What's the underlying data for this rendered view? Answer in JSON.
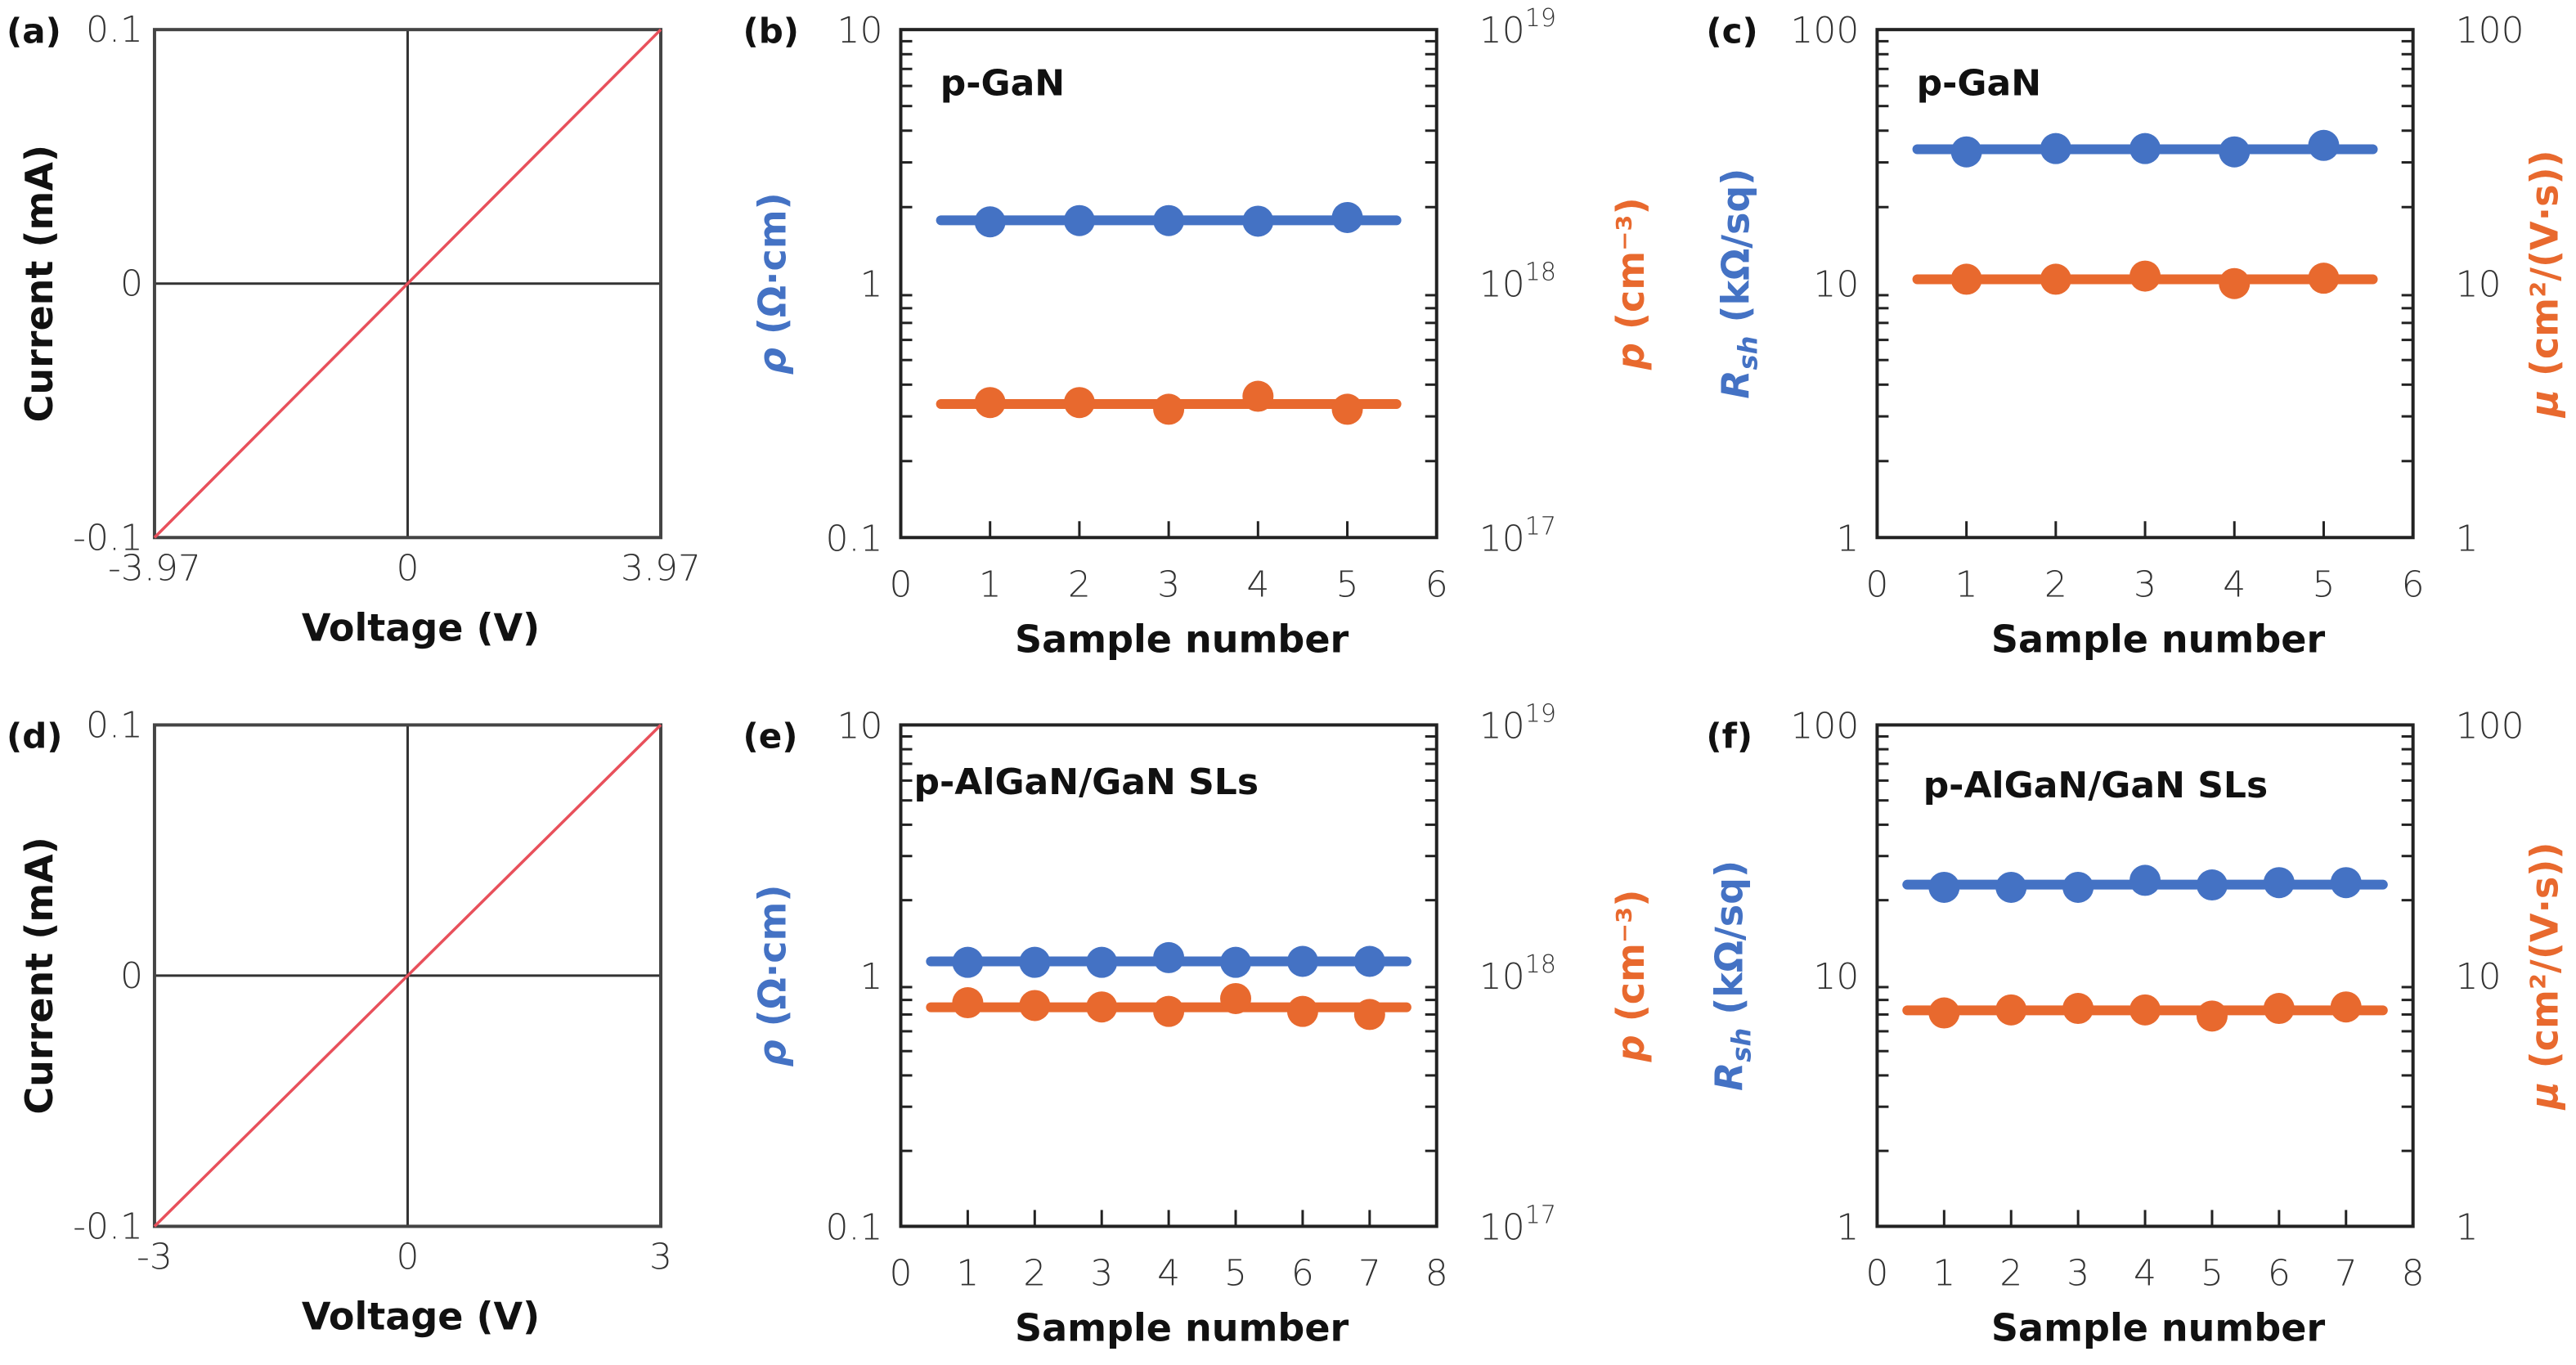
{
  "colors": {
    "blue": "#4472C4",
    "orange": "#E8692E",
    "iv_line": "#E8505B",
    "axis": "#333333"
  },
  "chart_data": [
    {
      "panel": "(a)",
      "type": "line",
      "xlabel": "Voltage (V)",
      "ylabel": "Current (mA)",
      "xlim": [
        -3.97,
        3.97
      ],
      "ylim": [
        -0.1,
        0.1
      ],
      "xticks": [
        "-3.97",
        "0",
        "3.97"
      ],
      "xtick_values": [
        -3.97,
        0,
        3.97
      ],
      "yticks": [
        "0.1",
        "0",
        "-0.1"
      ],
      "ytick_values": [
        0.1,
        0,
        -0.1
      ],
      "grid": "zero-lines",
      "series": [
        {
          "x": [
            -3.97,
            0,
            3.97
          ],
          "y": [
            -0.1,
            0,
            0.1
          ],
          "color": "#E8505B"
        }
      ]
    },
    {
      "panel": "(b)",
      "type": "scatter",
      "title": "p-GaN",
      "xlabel": "Sample number",
      "xlim": [
        0,
        6
      ],
      "xticks": [
        "0",
        "1",
        "2",
        "3",
        "4",
        "5",
        "6"
      ],
      "ylabel_left": {
        "main": "ρ",
        "sub": "",
        "rest": " (Ω·cm)"
      },
      "ylim_left": [
        0.1,
        10
      ],
      "yscale": "log",
      "yticks_left": [
        "10",
        "1",
        "0.1"
      ],
      "ylabel_right": {
        "main": "p",
        "sub": "",
        "rest": " (cm⁻³)"
      },
      "ylim_right": [
        1e+17,
        1e+19
      ],
      "yticks_right": [
        {
          "base": "10",
          "exp": "19"
        },
        {
          "base": "10",
          "exp": "18"
        },
        {
          "base": "10",
          "exp": "17"
        }
      ],
      "series": [
        {
          "axis": "left",
          "color": "#4472C4",
          "x": [
            1,
            2,
            3,
            4,
            5
          ],
          "y": [
            1.75,
            1.77,
            1.77,
            1.76,
            1.82
          ]
        },
        {
          "axis": "right",
          "color": "#E8692E",
          "x": [
            1,
            2,
            3,
            4,
            5
          ],
          "y": [
            3.4e+17,
            3.4e+17,
            3.2e+17,
            3.6e+17,
            3.2e+17
          ]
        }
      ]
    },
    {
      "panel": "(c)",
      "type": "scatter",
      "title": "p-GaN",
      "xlabel": "Sample number",
      "xlim": [
        0,
        6
      ],
      "xticks": [
        "0",
        "1",
        "2",
        "3",
        "4",
        "5",
        "6"
      ],
      "ylabel_left": {
        "main": "R",
        "sub": "sh",
        "rest": " (kΩ/sq)"
      },
      "ylim_left": [
        1,
        100
      ],
      "yscale": "log",
      "yticks_left": [
        "100",
        "10",
        "1"
      ],
      "ylabel_right": {
        "main": "μ",
        "sub": "",
        "rest": " (cm²/(V·s))"
      },
      "ylim_right": [
        1,
        100
      ],
      "yticks_right": [
        {
          "base": "100",
          "exp": ""
        },
        {
          "base": "10",
          "exp": ""
        },
        {
          "base": "1",
          "exp": ""
        }
      ],
      "series": [
        {
          "axis": "left",
          "color": "#4472C4",
          "x": [
            1,
            2,
            3,
            4,
            5
          ],
          "y": [
            33,
            34,
            34,
            33,
            35
          ]
        },
        {
          "axis": "right",
          "color": "#E8692E",
          "x": [
            1,
            2,
            3,
            4,
            5
          ],
          "y": [
            10.4,
            10.4,
            10.7,
            10.0,
            10.5
          ]
        }
      ]
    },
    {
      "panel": "(d)",
      "type": "line",
      "xlabel": "Voltage (V)",
      "ylabel": "Current (mA)",
      "xlim": [
        -3,
        3
      ],
      "ylim": [
        -0.1,
        0.1
      ],
      "xticks": [
        "-3",
        "0",
        "3"
      ],
      "xtick_values": [
        -3,
        0,
        3
      ],
      "yticks": [
        "0.1",
        "0",
        "-0.1"
      ],
      "ytick_values": [
        0.1,
        0,
        -0.1
      ],
      "grid": "zero-lines",
      "series": [
        {
          "x": [
            -3,
            0,
            3
          ],
          "y": [
            -0.1,
            0,
            0.1
          ],
          "color": "#E8505B"
        }
      ]
    },
    {
      "panel": "(e)",
      "type": "scatter",
      "title": "p-AlGaN/GaN SLs",
      "xlabel": "Sample number",
      "xlim": [
        0,
        8
      ],
      "xticks": [
        "0",
        "1",
        "2",
        "3",
        "4",
        "5",
        "6",
        "7",
        "8"
      ],
      "ylabel_left": {
        "main": "ρ",
        "sub": "",
        "rest": " (Ω·cm)"
      },
      "ylim_left": [
        0.1,
        10
      ],
      "yscale": "log",
      "yticks_left": [
        "10",
        "1",
        "0.1"
      ],
      "ylabel_right": {
        "main": "p",
        "sub": "",
        "rest": " (cm⁻³)"
      },
      "ylim_right": [
        1e+17,
        1e+19
      ],
      "yticks_right": [
        {
          "base": "10",
          "exp": "19"
        },
        {
          "base": "10",
          "exp": "18"
        },
        {
          "base": "10",
          "exp": "17"
        }
      ],
      "series": [
        {
          "axis": "left",
          "color": "#4472C4",
          "x": [
            1,
            2,
            3,
            4,
            5,
            6,
            7
          ],
          "y": [
            1.13,
            1.13,
            1.13,
            1.18,
            1.13,
            1.14,
            1.14
          ]
        },
        {
          "axis": "right",
          "color": "#E8692E",
          "x": [
            1,
            2,
            3,
            4,
            5,
            6,
            7
          ],
          "y": [
            7.8e+17,
            7.6e+17,
            7.5e+17,
            7.2e+17,
            8.1e+17,
            7.2e+17,
            7e+17
          ]
        }
      ]
    },
    {
      "panel": "(f)",
      "type": "scatter",
      "title": "p-AlGaN/GaN SLs",
      "xlabel": "Sample number",
      "xlim": [
        0,
        8
      ],
      "xticks": [
        "0",
        "1",
        "2",
        "3",
        "4",
        "5",
        "6",
        "7",
        "8"
      ],
      "ylabel_left": {
        "main": "R",
        "sub": "sh",
        "rest": " (kΩ/sq)"
      },
      "ylim_left": [
        1,
        100
      ],
      "yscale": "log",
      "yticks_left": [
        "100",
        "10",
        "1"
      ],
      "ylabel_right": {
        "main": "μ",
        "sub": "",
        "rest": " (cm²/(V·s))"
      },
      "ylim_right": [
        1,
        100
      ],
      "yticks_right": [
        {
          "base": "100",
          "exp": ""
        },
        {
          "base": "10",
          "exp": ""
        },
        {
          "base": "1",
          "exp": ""
        }
      ],
      "series": [
        {
          "axis": "left",
          "color": "#4472C4",
          "x": [
            1,
            2,
            3,
            4,
            5,
            6,
            7
          ],
          "y": [
            22.5,
            22.5,
            22.5,
            24,
            23,
            23.5,
            23.5
          ]
        },
        {
          "axis": "right",
          "color": "#E8692E",
          "x": [
            1,
            2,
            3,
            4,
            5,
            6,
            7
          ],
          "y": [
            7.1,
            7.3,
            7.4,
            7.3,
            6.9,
            7.4,
            7.5
          ]
        }
      ]
    }
  ]
}
